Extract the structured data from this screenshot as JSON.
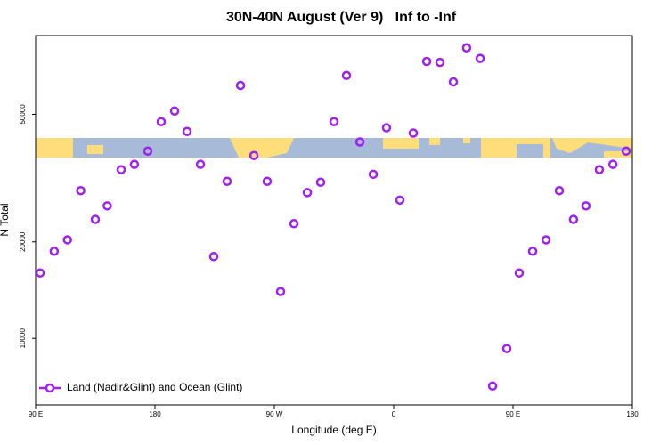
{
  "chart_data": {
    "type": "scatter",
    "title": "30N-40N August (Ver 9)   Inf to -Inf",
    "x_label": "Longitude (deg E)",
    "y_label": "N Total",
    "log_y": true,
    "xlim": [
      90,
      540
    ],
    "ylim": [
      6200,
      88000
    ],
    "xticks": [
      {
        "value": 90,
        "label": "90 E"
      },
      {
        "value": 180,
        "label": "180"
      },
      {
        "value": 270,
        "label": "90 W"
      },
      {
        "value": 360,
        "label": "0"
      },
      {
        "value": 450,
        "label": "90 E"
      },
      {
        "value": 540,
        "label": "180"
      }
    ],
    "yticks": [
      10000,
      20000,
      50000
    ],
    "legend_position": "bottom-left",
    "series": [
      {
        "name": "Land (Nadir&Glint) and Ocean (Glint)",
        "color": "#a020f0",
        "x": [
          93.4,
          104,
          114,
          124,
          135,
          144,
          154.5,
          164.5,
          174.6,
          184.7,
          194.8,
          204.2,
          214.3,
          224.3,
          234.4,
          244.5,
          254.6,
          264.6,
          274.7,
          284.8,
          294.9,
          304.9,
          315,
          324.4,
          334.5,
          344.6,
          354.6,
          364.7,
          374.8,
          384.9,
          394.9,
          405,
          415,
          425.2,
          434.6,
          445.3,
          454.7,
          464.8,
          474.9,
          484.9,
          495.6,
          505,
          515.1,
          525.3,
          535.3
        ],
        "values": [
          16000,
          18700,
          20300,
          28900,
          23500,
          25900,
          33600,
          34900,
          38400,
          47400,
          51200,
          44200,
          34900,
          18000,
          30900,
          61500,
          37200,
          30900,
          14000,
          22800,
          28500,
          30700,
          47400,
          66100,
          41000,
          32500,
          45400,
          27000,
          43700,
          73100,
          72600,
          63100,
          80600,
          74700,
          7100,
          9300,
          16000,
          18700,
          20300,
          28900,
          23500,
          25900,
          33600,
          34900,
          38400
        ]
      }
    ]
  }
}
